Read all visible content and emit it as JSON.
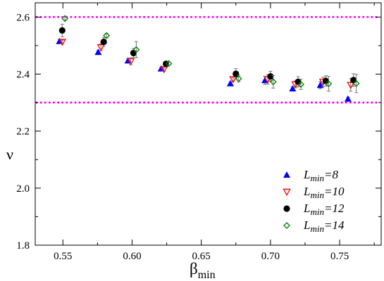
{
  "chart_data": {
    "type": "scatter",
    "xlabel_main": "β",
    "xlabel_sub": "min",
    "ylabel": "ν",
    "xlim": [
      0.53,
      0.78
    ],
    "ylim": [
      1.8,
      2.65
    ],
    "x_ticks": [
      "0.55",
      "0.60",
      "0.65",
      "0.70",
      "0.75"
    ],
    "x_tick_values": [
      0.55,
      0.6,
      0.65,
      0.7,
      0.75
    ],
    "y_ticks": [
      "1.8",
      "2.0",
      "2.2",
      "2.4",
      "2.6"
    ],
    "y_tick_values": [
      1.8,
      2.0,
      2.2,
      2.4,
      2.6
    ],
    "grid": false,
    "legend_position": "bottom-right",
    "reference_lines": [
      {
        "y": 2.6,
        "style": "dotted",
        "color": "#ff00ff"
      },
      {
        "y": 2.3,
        "style": "dotted",
        "color": "#ff00ff"
      }
    ],
    "series": [
      {
        "legend_main": "L",
        "legend_sub": "min",
        "legend_suffix": "=8",
        "marker": "triangle-up",
        "color": "#0000ff",
        "filled": true,
        "points": [
          {
            "x": 0.5475,
            "y": 2.515,
            "err": 0.006
          },
          {
            "x": 0.5755,
            "y": 2.477,
            "err": 0.006
          },
          {
            "x": 0.597,
            "y": 2.447,
            "err": 0.007
          },
          {
            "x": 0.621,
            "y": 2.419,
            "err": 0.005
          },
          {
            "x": 0.671,
            "y": 2.367,
            "err": 0.005
          },
          {
            "x": 0.696,
            "y": 2.378,
            "err": 0.014
          },
          {
            "x": 0.716,
            "y": 2.349,
            "err": 0.006
          },
          {
            "x": 0.736,
            "y": 2.361,
            "err": 0.012
          },
          {
            "x": 0.756,
            "y": 2.313,
            "err": 0.006
          }
        ]
      },
      {
        "legend_main": "L",
        "legend_sub": "min",
        "legend_suffix": "=10",
        "marker": "triangle-down",
        "color": "#ff0000",
        "filled": false,
        "points": [
          {
            "x": 0.5495,
            "y": 2.513,
            "err": 0.006
          },
          {
            "x": 0.5775,
            "y": 2.494,
            "err": 0.012
          },
          {
            "x": 0.599,
            "y": 2.445,
            "err": 0.012
          },
          {
            "x": 0.623,
            "y": 2.417,
            "err": 0.006
          },
          {
            "x": 0.673,
            "y": 2.382,
            "err": 0.006
          },
          {
            "x": 0.698,
            "y": 2.381,
            "err": 0.016
          },
          {
            "x": 0.718,
            "y": 2.364,
            "err": 0.012
          },
          {
            "x": 0.738,
            "y": 2.373,
            "err": 0.016
          },
          {
            "x": 0.758,
            "y": 2.362,
            "err": 0.022
          }
        ]
      },
      {
        "legend_main": "L",
        "legend_sub": "min",
        "legend_suffix": "=12",
        "marker": "circle",
        "color": "#000000",
        "filled": true,
        "points": [
          {
            "x": 0.5495,
            "y": 2.553,
            "err": 0.022
          },
          {
            "x": 0.5795,
            "y": 2.513,
            "err": 0.016
          },
          {
            "x": 0.601,
            "y": 2.474,
            "err": 0.016
          },
          {
            "x": 0.6245,
            "y": 2.436,
            "err": 0.008
          },
          {
            "x": 0.675,
            "y": 2.401,
            "err": 0.018
          },
          {
            "x": 0.7,
            "y": 2.392,
            "err": 0.018
          },
          {
            "x": 0.72,
            "y": 2.373,
            "err": 0.018
          },
          {
            "x": 0.74,
            "y": 2.376,
            "err": 0.018
          },
          {
            "x": 0.76,
            "y": 2.379,
            "err": 0.022
          }
        ]
      },
      {
        "legend_main": "L",
        "legend_sub": "min",
        "legend_suffix": "=14",
        "marker": "diamond",
        "color": "#008000",
        "filled": false,
        "points": [
          {
            "x": 0.5515,
            "y": 2.595,
            "err": 0.006
          },
          {
            "x": 0.5815,
            "y": 2.535,
            "err": 0.008
          },
          {
            "x": 0.603,
            "y": 2.486,
            "err": 0.028
          },
          {
            "x": 0.6265,
            "y": 2.437,
            "err": 0.006
          },
          {
            "x": 0.677,
            "y": 2.384,
            "err": 0.012
          },
          {
            "x": 0.702,
            "y": 2.373,
            "err": 0.022
          },
          {
            "x": 0.722,
            "y": 2.364,
            "err": 0.018
          },
          {
            "x": 0.742,
            "y": 2.366,
            "err": 0.026
          },
          {
            "x": 0.762,
            "y": 2.367,
            "err": 0.032
          }
        ]
      }
    ]
  }
}
